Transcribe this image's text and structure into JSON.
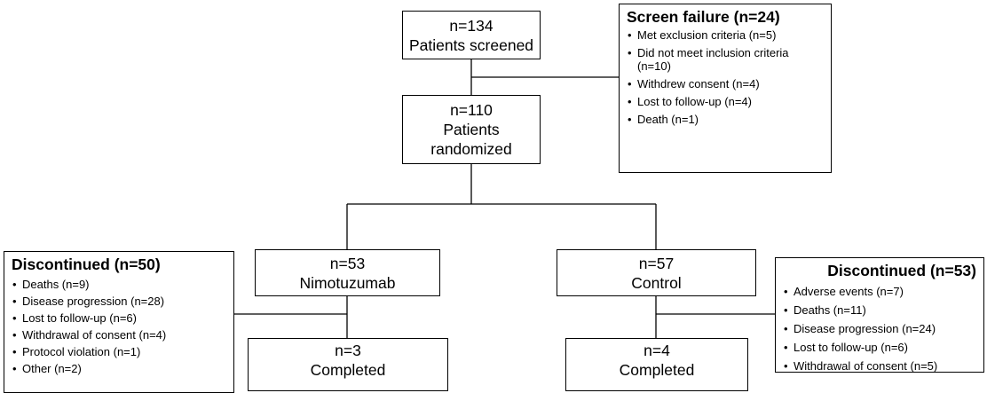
{
  "nodes": [
    {
      "lines": [
        "n=134",
        "Patients screened"
      ]
    },
    {
      "lines": [
        "n=110",
        "Patients",
        "randomized"
      ]
    },
    {
      "lines": [
        "n=53",
        "Nimotuzumab"
      ]
    },
    {
      "lines": [
        "n=57",
        "Control"
      ]
    },
    {
      "lines": [
        "n=3",
        "Completed"
      ]
    },
    {
      "lines": [
        "n=4",
        "Completed"
      ]
    }
  ],
  "exclusions": [
    {
      "title": "Screen failure (n=24)",
      "items": [
        "Met exclusion criteria (n=5)",
        "Did not meet inclusion criteria (n=10)",
        "Withdrew consent (n=4)",
        "Lost to follow-up (n=4)",
        "Death (n=1)"
      ]
    },
    {
      "title": "Discontinued (n=50)",
      "items": [
        "Deaths (n=9)",
        "Disease progression (n=28)",
        "Lost to follow-up (n=6)",
        "Withdrawal of consent (n=4)",
        "Protocol violation (n=1)",
        "Other (n=2)"
      ]
    },
    {
      "title": "Discontinued (n=53)",
      "items": [
        "Adverse events (n=7)",
        "Deaths (n=11)",
        "Disease progression (n=24)",
        "Lost to follow-up (n=6)",
        "Withdrawal of consent (n=5)"
      ]
    }
  ]
}
